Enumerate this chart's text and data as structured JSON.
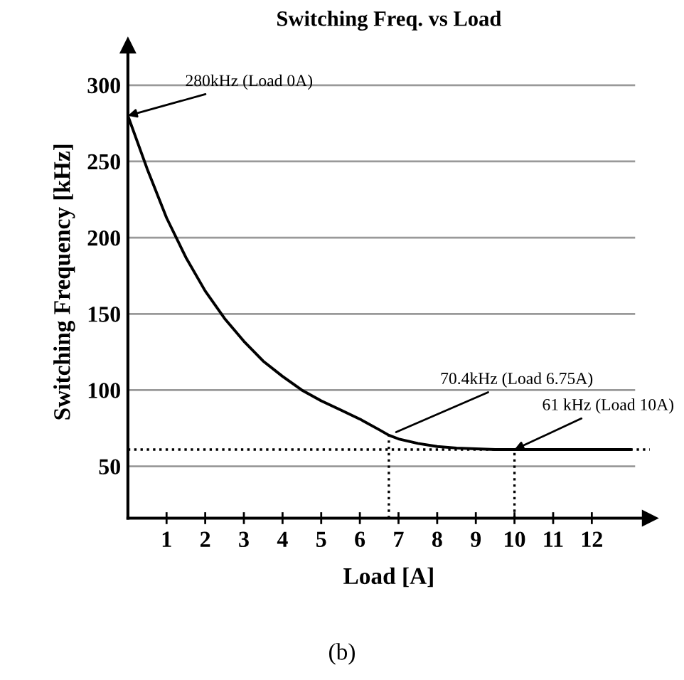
{
  "chart_data": {
    "type": "line",
    "title": "Switching Freq. vs Load",
    "xlabel": "Load [A]",
    "ylabel": "Switching Frequency [kHz]",
    "x": [
      0,
      0.5,
      1,
      1.5,
      2,
      2.5,
      3,
      3.5,
      4,
      4.5,
      5,
      5.5,
      6,
      6.5,
      6.75,
      7,
      7.5,
      8,
      8.5,
      9,
      9.5,
      10,
      11,
      12,
      13
    ],
    "series": [
      {
        "color": "#000000",
        "values": [
          280,
          245,
          213,
          187,
          165,
          147,
          132,
          119,
          109,
          100,
          93,
          87,
          81,
          74,
          70.4,
          68,
          65,
          63,
          62,
          61.5,
          61,
          61,
          61,
          61,
          61
        ]
      }
    ],
    "xlim": [
      0,
      13.5
    ],
    "ylim": [
      16,
      326
    ],
    "xticks": [
      1,
      2,
      3,
      4,
      5,
      6,
      7,
      8,
      9,
      10,
      11,
      12
    ],
    "yticks": [
      50,
      100,
      150,
      200,
      250,
      300
    ],
    "grid": "y",
    "marker": "none",
    "line_style": "solid",
    "ref_lines": [
      {
        "axis": "y",
        "value": 61,
        "line_style": "dotted",
        "color": "#000000"
      },
      {
        "axis": "x",
        "value": 6.75,
        "line_style": "dotted",
        "color": "#000000"
      },
      {
        "axis": "x",
        "value": 10,
        "line_style": "dotted",
        "color": "#000000"
      }
    ],
    "annotations": [
      {
        "text": "280kHz (Load 0A)",
        "x": 0,
        "y": 280
      },
      {
        "text": "70.4kHz (Load 6.75A)",
        "x": 6.75,
        "y": 70.4
      },
      {
        "text": "61 kHz (Load 10A)",
        "x": 10,
        "y": 61
      },
      "(b)"
    ]
  }
}
